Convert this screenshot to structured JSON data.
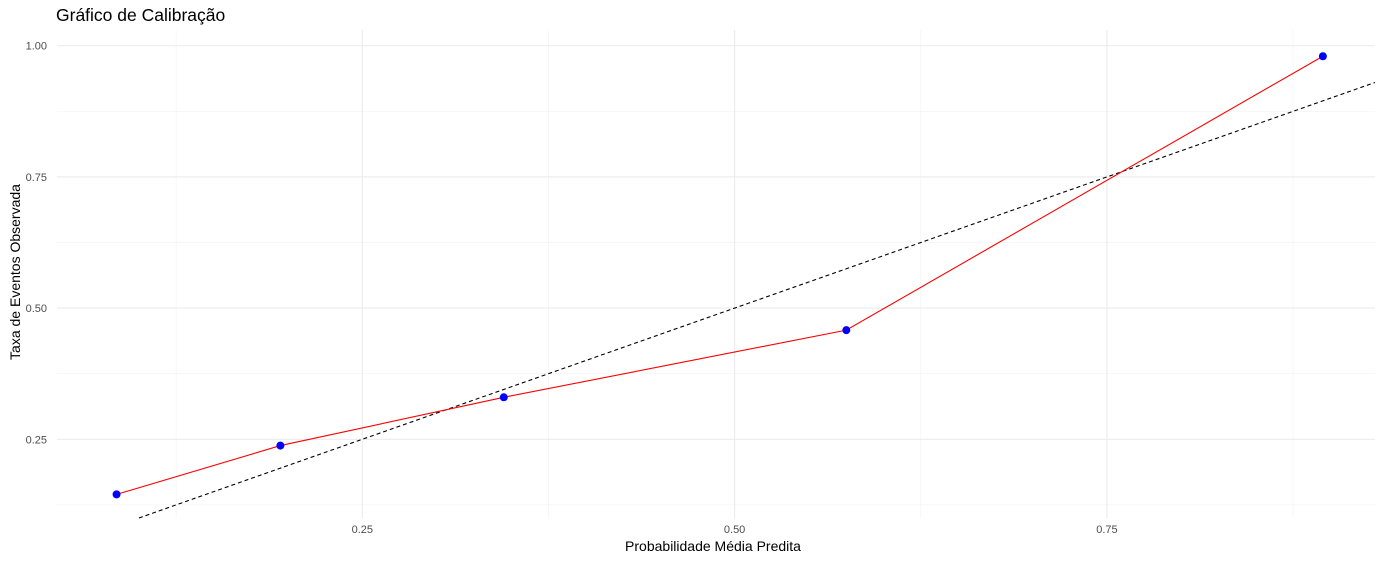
{
  "chart_data": {
    "type": "line",
    "title": "Gráfico de Calibração",
    "xlabel": "Probabilidade Média Predita",
    "ylabel": "Taxa de Eventos Observada",
    "xlim": [
      0.045,
      0.93
    ],
    "ylim": [
      0.1,
      1.03
    ],
    "x_ticks": [
      0.25,
      0.5,
      0.75
    ],
    "x_tick_labels": [
      "0.25",
      "0.50",
      "0.75"
    ],
    "y_ticks": [
      0.25,
      0.5,
      0.75,
      1.0
    ],
    "y_tick_labels": [
      "0.25",
      "0.50",
      "0.75",
      "1.00"
    ],
    "grid": true,
    "series": [
      {
        "x": [
          0.085,
          0.195,
          0.345,
          0.575,
          0.895
        ],
        "y": [
          0.145,
          0.238,
          0.33,
          0.458,
          0.98
        ],
        "line_color": "#ff0000",
        "point_color": "#0000ff"
      }
    ],
    "reference_line": {
      "intercept": 0,
      "slope": 1,
      "style": "dashed",
      "color": "#000000"
    }
  }
}
